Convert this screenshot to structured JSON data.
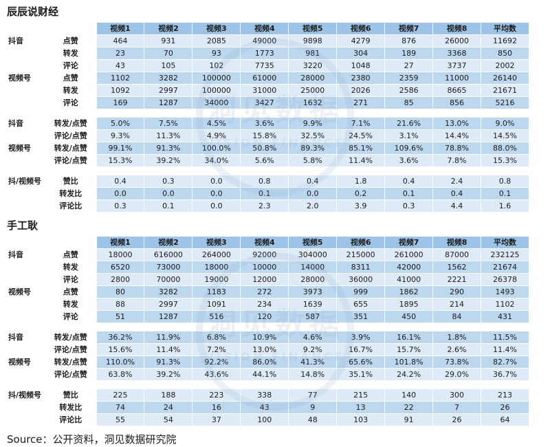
{
  "source": "Source：公开资料，洞见数据研究院",
  "watermark": {
    "line1": "洞见数据",
    "line2": "VISION FINANCE"
  },
  "colors": {
    "header_bg": "#9dc3e6",
    "row_light": "#deebf7",
    "row_medium": "#bdd7ee"
  },
  "chart_data": [
    {
      "type": "table",
      "title": "辰辰说财经",
      "columns": [
        "视频1",
        "视频2",
        "视频3",
        "视频4",
        "视频5",
        "视频6",
        "视频7",
        "视频8",
        "平均数"
      ],
      "rows": [
        {
          "group": "抖音",
          "label": "点赞",
          "values": [
            "464",
            "931",
            "2085",
            "49000",
            "9898",
            "4279",
            "876",
            "26000",
            "11692"
          ]
        },
        {
          "group": "",
          "label": "转发",
          "values": [
            "23",
            "70",
            "93",
            "1773",
            "981",
            "304",
            "189",
            "3368",
            "850"
          ]
        },
        {
          "group": "",
          "label": "评论",
          "values": [
            "43",
            "105",
            "102",
            "7735",
            "3220",
            "1048",
            "27",
            "3737",
            "2002"
          ]
        },
        {
          "group": "视频号",
          "label": "点赞",
          "values": [
            "1102",
            "3282",
            "100000",
            "61000",
            "28000",
            "2380",
            "2359",
            "11000",
            "26140"
          ]
        },
        {
          "group": "",
          "label": "转发",
          "values": [
            "1092",
            "2997",
            "100000",
            "31000",
            "25000",
            "2026",
            "2586",
            "8665",
            "21671"
          ]
        },
        {
          "group": "",
          "label": "评论",
          "values": [
            "169",
            "1287",
            "34000",
            "3427",
            "1632",
            "271",
            "85",
            "856",
            "5216"
          ]
        },
        {
          "separator": true
        },
        {
          "group": "抖音",
          "label": "转发/点赞",
          "values": [
            "5.0%",
            "7.5%",
            "4.5%",
            "3.6%",
            "9.9%",
            "7.1%",
            "21.6%",
            "13.0%",
            "9.0%"
          ]
        },
        {
          "group": "",
          "label": "评论/点赞",
          "values": [
            "9.3%",
            "11.3%",
            "4.9%",
            "15.8%",
            "32.5%",
            "24.5%",
            "3.1%",
            "14.4%",
            "14.5%"
          ]
        },
        {
          "group": "视频号",
          "label": "转发/点赞",
          "values": [
            "99.1%",
            "91.3%",
            "100.0%",
            "50.8%",
            "89.3%",
            "85.1%",
            "109.6%",
            "78.8%",
            "88.0%"
          ]
        },
        {
          "group": "",
          "label": "评论/点赞",
          "values": [
            "15.3%",
            "39.2%",
            "34.0%",
            "5.6%",
            "5.8%",
            "11.4%",
            "3.6%",
            "7.8%",
            "15.3%"
          ]
        },
        {
          "separator": true
        },
        {
          "group": "抖/视频号",
          "label": "赞比",
          "values": [
            "0.4",
            "0.3",
            "0.0",
            "0.8",
            "0.4",
            "1.8",
            "0.4",
            "2.4",
            "0.8"
          ]
        },
        {
          "group": "",
          "label": "转发比",
          "values": [
            "0.0",
            "0.0",
            "0.0",
            "0.1",
            "0.0",
            "0.2",
            "0.1",
            "0.4",
            "0.1"
          ]
        },
        {
          "group": "",
          "label": "评论比",
          "values": [
            "0.3",
            "0.1",
            "0.0",
            "2.3",
            "2.0",
            "3.9",
            "0.3",
            "4.4",
            "1.6"
          ]
        }
      ]
    },
    {
      "type": "table",
      "title": "手工耿",
      "columns": [
        "视频1",
        "视频2",
        "视频3",
        "视频4",
        "视频5",
        "视频6",
        "视频7",
        "视频8",
        "平均数"
      ],
      "rows": [
        {
          "group": "抖音",
          "label": "点赞",
          "values": [
            "18000",
            "616000",
            "264000",
            "92000",
            "304000",
            "215000",
            "261000",
            "87000",
            "232125"
          ]
        },
        {
          "group": "",
          "label": "转发",
          "values": [
            "6520",
            "73000",
            "18000",
            "10000",
            "14000",
            "8311",
            "42000",
            "1562",
            "21674"
          ]
        },
        {
          "group": "",
          "label": "评论",
          "values": [
            "2800",
            "70000",
            "19000",
            "12000",
            "28000",
            "36000",
            "41000",
            "2221",
            "26378"
          ]
        },
        {
          "group": "视频号",
          "label": "点赞",
          "values": [
            "80",
            "3282",
            "1183",
            "272",
            "3973",
            "999",
            "1862",
            "290",
            "1493"
          ]
        },
        {
          "group": "",
          "label": "转发",
          "values": [
            "88",
            "2997",
            "1091",
            "234",
            "1639",
            "655",
            "1895",
            "214",
            "1102"
          ]
        },
        {
          "group": "",
          "label": "评论",
          "values": [
            "51",
            "1287",
            "516",
            "120",
            "587",
            "351",
            "450",
            "84",
            "431"
          ]
        },
        {
          "separator": true
        },
        {
          "group": "抖音",
          "label": "转发/点赞",
          "values": [
            "36.2%",
            "11.9%",
            "6.8%",
            "10.9%",
            "4.6%",
            "3.9%",
            "16.1%",
            "1.8%",
            "11.5%"
          ]
        },
        {
          "group": "",
          "label": "评论/点赞",
          "values": [
            "15.6%",
            "11.4%",
            "7.2%",
            "13.0%",
            "9.2%",
            "16.7%",
            "15.7%",
            "2.6%",
            "11.4%"
          ]
        },
        {
          "group": "视频号",
          "label": "转发/点赞",
          "values": [
            "110.0%",
            "91.3%",
            "92.2%",
            "86.0%",
            "41.3%",
            "65.6%",
            "101.8%",
            "73.8%",
            "82.7%"
          ]
        },
        {
          "group": "",
          "label": "评论/点赞",
          "values": [
            "63.8%",
            "39.2%",
            "43.6%",
            "44.1%",
            "14.8%",
            "35.1%",
            "24.2%",
            "29.0%",
            "36.7%"
          ]
        },
        {
          "separator": true
        },
        {
          "group": "抖/视频号",
          "label": "赞比",
          "values": [
            "225",
            "188",
            "223",
            "338",
            "77",
            "215",
            "140",
            "300",
            "213"
          ]
        },
        {
          "group": "",
          "label": "转发比",
          "values": [
            "74",
            "24",
            "16",
            "43",
            "9",
            "13",
            "22",
            "7",
            "26"
          ]
        },
        {
          "group": "",
          "label": "评论比",
          "values": [
            "55",
            "54",
            "37",
            "100",
            "48",
            "103",
            "91",
            "26",
            "64"
          ]
        }
      ]
    }
  ]
}
